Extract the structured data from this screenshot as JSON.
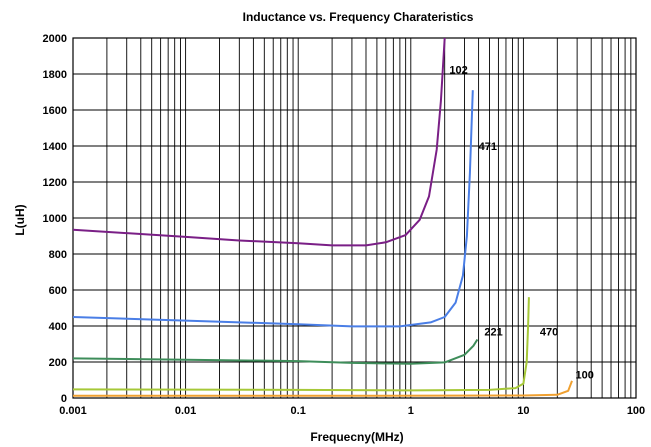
{
  "chart_data": {
    "type": "line",
    "title": "Inductance vs. Frequency Charateristics",
    "xlabel": "Frequecny(MHz)",
    "ylabel": "L(uH)",
    "x_scale": "log",
    "xlim": [
      0.001,
      100
    ],
    "ylim": [
      0,
      2000
    ],
    "grid": true,
    "x_ticks": [
      {
        "value": 0.001,
        "label": "0.001"
      },
      {
        "value": 0.01,
        "label": "0.01"
      },
      {
        "value": 0.1,
        "label": "0.1"
      },
      {
        "value": 1,
        "label": "1"
      },
      {
        "value": 10,
        "label": "10"
      },
      {
        "value": 100,
        "label": "100"
      }
    ],
    "y_ticks": [
      {
        "value": 0,
        "label": "0"
      },
      {
        "value": 200,
        "label": "200"
      },
      {
        "value": 400,
        "label": "400"
      },
      {
        "value": 600,
        "label": "600"
      },
      {
        "value": 800,
        "label": "800"
      },
      {
        "value": 1000,
        "label": "1000"
      },
      {
        "value": 1200,
        "label": "1200"
      },
      {
        "value": 1400,
        "label": "1400"
      },
      {
        "value": 1600,
        "label": "1600"
      },
      {
        "value": 1800,
        "label": "1800"
      },
      {
        "value": 2000,
        "label": "2000"
      }
    ],
    "series": [
      {
        "name": "102",
        "color": "#7a1f86",
        "label_at": {
          "x": 2.2,
          "y": 1825
        },
        "points": [
          [
            0.001,
            935
          ],
          [
            0.01,
            895
          ],
          [
            0.03,
            875
          ],
          [
            0.1,
            860
          ],
          [
            0.2,
            848
          ],
          [
            0.4,
            848
          ],
          [
            0.6,
            865
          ],
          [
            0.9,
            905
          ],
          [
            1.2,
            990
          ],
          [
            1.45,
            1120
          ],
          [
            1.7,
            1380
          ],
          [
            1.85,
            1650
          ],
          [
            2.0,
            2000
          ]
        ]
      },
      {
        "name": "471",
        "color": "#4a7ee6",
        "label_at": {
          "x": 4.0,
          "y": 1400
        },
        "points": [
          [
            0.001,
            450
          ],
          [
            0.01,
            430
          ],
          [
            0.1,
            410
          ],
          [
            0.3,
            398
          ],
          [
            0.8,
            398
          ],
          [
            1.5,
            420
          ],
          [
            2.0,
            450
          ],
          [
            2.5,
            530
          ],
          [
            2.9,
            680
          ],
          [
            3.15,
            900
          ],
          [
            3.35,
            1250
          ],
          [
            3.55,
            1710
          ]
        ]
      },
      {
        "name": "221",
        "color": "#3e8d5a",
        "label_at": {
          "x": 4.5,
          "y": 370
        },
        "points": [
          [
            0.001,
            220
          ],
          [
            0.01,
            213
          ],
          [
            0.1,
            205
          ],
          [
            0.3,
            195
          ],
          [
            1.0,
            190
          ],
          [
            2.0,
            198
          ],
          [
            3.0,
            240
          ],
          [
            3.6,
            290
          ],
          [
            3.9,
            325
          ]
        ]
      },
      {
        "name": "470",
        "color": "#a6c838",
        "label_at": {
          "x": 14.0,
          "y": 370
        },
        "points": [
          [
            0.001,
            48
          ],
          [
            0.1,
            45
          ],
          [
            1,
            42
          ],
          [
            5,
            45
          ],
          [
            8.5,
            55
          ],
          [
            10.0,
            80
          ],
          [
            10.7,
            200
          ],
          [
            11.0,
            400
          ],
          [
            11.2,
            560
          ]
        ]
      },
      {
        "name": "100",
        "color": "#f0a030",
        "label_at": {
          "x": 29.0,
          "y": 130
        },
        "points": [
          [
            0.001,
            12
          ],
          [
            0.1,
            12
          ],
          [
            10,
            14
          ],
          [
            20,
            18
          ],
          [
            25,
            40
          ],
          [
            27,
            95
          ]
        ]
      }
    ]
  }
}
